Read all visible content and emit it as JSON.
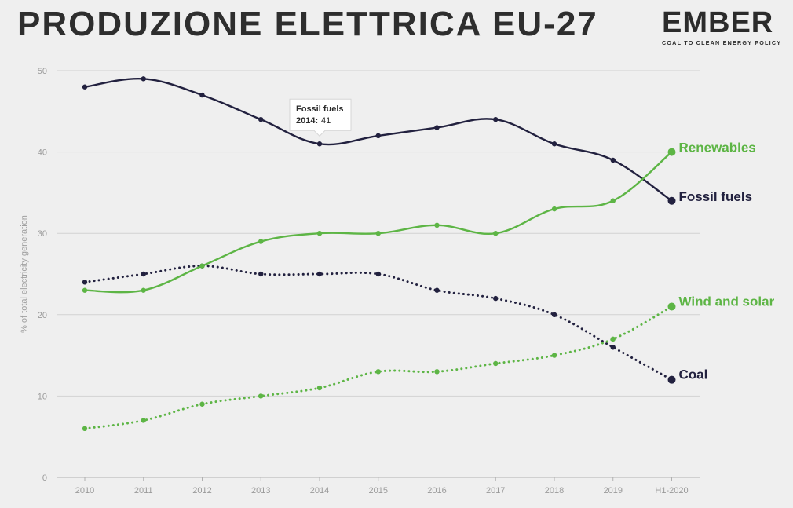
{
  "title": "PRODUZIONE  ELETTRICA  EU-27",
  "logo": {
    "word": "EMBER",
    "tagline": "COAL TO CLEAN ENERGY POLICY"
  },
  "chart_data": {
    "type": "line",
    "title": "PRODUZIONE  ELETTRICA  EU-27",
    "xlabel": "",
    "ylabel": "% of total electricity generation",
    "categories": [
      "2010",
      "2011",
      "2012",
      "2013",
      "2014",
      "2015",
      "2016",
      "2017",
      "2018",
      "2019",
      "H1-2020"
    ],
    "ylim": [
      0,
      50
    ],
    "yticks": [
      "0",
      "10",
      "20",
      "30",
      "40",
      "50"
    ],
    "grid": true,
    "legend": "end-of-line labels",
    "series": [
      {
        "name": "Fossil fuels",
        "color": "#22213f",
        "style": "solid",
        "values": [
          48,
          49,
          47,
          44,
          41,
          42,
          43,
          44,
          41,
          39,
          34
        ]
      },
      {
        "name": "Renewables",
        "color": "#5db545",
        "style": "solid",
        "values": [
          23,
          23,
          26,
          29,
          30,
          30,
          31,
          30,
          33,
          34,
          40
        ]
      },
      {
        "name": "Coal",
        "color": "#22213f",
        "style": "dotted",
        "values": [
          24,
          25,
          26,
          25,
          25,
          25,
          23,
          22,
          20,
          16,
          12
        ]
      },
      {
        "name": "Wind and solar",
        "color": "#5db545",
        "style": "dotted",
        "values": [
          6,
          7,
          9,
          10,
          11,
          13,
          13,
          14,
          15,
          17,
          21
        ]
      }
    ],
    "tooltip": {
      "series": "Fossil fuels",
      "category": "2014",
      "value": "41",
      "name_text": "Fossil fuels",
      "cat_text": "2014:",
      "val_text": "41"
    }
  }
}
